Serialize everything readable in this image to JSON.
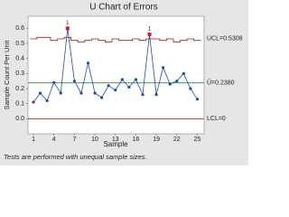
{
  "chart_data": {
    "type": "control",
    "title": "U Chart of Errors",
    "xlabel": "Sample",
    "ylabel": "Sample Count Per Unit",
    "footnote": "Tests are performed with unequal sample sizes.",
    "x": [
      1,
      2,
      3,
      4,
      5,
      6,
      7,
      8,
      9,
      10,
      11,
      12,
      13,
      14,
      15,
      16,
      17,
      18,
      19,
      20,
      21,
      22,
      23,
      24,
      25
    ],
    "values": [
      0.11,
      0.17,
      0.12,
      0.24,
      0.17,
      0.6,
      0.25,
      0.17,
      0.37,
      0.17,
      0.14,
      0.22,
      0.19,
      0.26,
      0.21,
      0.26,
      0.16,
      0.56,
      0.16,
      0.34,
      0.23,
      0.25,
      0.3,
      0.2,
      0.13
    ],
    "ucl": [
      0.53,
      0.54,
      0.54,
      0.52,
      0.53,
      0.54,
      0.52,
      0.51,
      0.52,
      0.53,
      0.52,
      0.51,
      0.53,
      0.52,
      0.52,
      0.53,
      0.52,
      0.53,
      0.53,
      0.52,
      0.53,
      0.51,
      0.52,
      0.53,
      0.52
    ],
    "ucl_label": {
      "value": 0.5308,
      "label": "UCL=0.5308"
    },
    "center": {
      "value": 0.238,
      "label": "Ū=0.2380"
    },
    "lcl": {
      "value": 0,
      "label": "LCL=0"
    },
    "flags": [
      {
        "sample": 6,
        "label": "1"
      },
      {
        "sample": 18,
        "label": "1"
      }
    ],
    "color": "#1f4e9a",
    "flag_color": "#d41c1c",
    "limit_color": "#9b1b1b",
    "center_color": "#2e8b2e",
    "xlim": [
      0.2,
      26
    ],
    "xticks": [
      1,
      4,
      7,
      10,
      13,
      16,
      19,
      22,
      25
    ],
    "ylim": [
      -0.1,
      0.68
    ],
    "yticks": [
      {
        "value": 0,
        "label": "0.0"
      },
      0.1,
      0.2,
      0.3,
      0.4,
      0.5,
      0.6
    ]
  }
}
